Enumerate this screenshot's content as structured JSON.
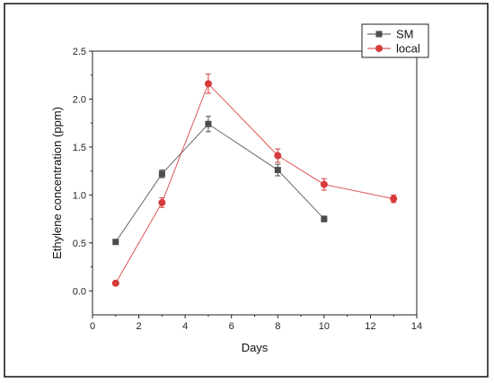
{
  "chart_data": {
    "type": "line",
    "xlabel": "Days",
    "ylabel": "Ethylene concentration (ppm)",
    "xlim": [
      0,
      14
    ],
    "ylim": [
      -0.25,
      2.5
    ],
    "x_ticks": [
      0,
      2,
      4,
      6,
      8,
      10,
      12,
      14
    ],
    "y_ticks": [
      0.0,
      0.5,
      1.0,
      1.5,
      2.0,
      2.5
    ],
    "x_tick_labels": [
      "0",
      "2",
      "4",
      "6",
      "8",
      "10",
      "12",
      "14"
    ],
    "y_tick_labels": [
      "0.0",
      "0.5",
      "1.0",
      "1.5",
      "2.0",
      "2.5"
    ],
    "grid": false,
    "legend_position": "top-right",
    "series": [
      {
        "name": "SM",
        "color": "#4d4d4d",
        "marker": "square",
        "x": [
          1,
          3,
          5,
          8,
          10
        ],
        "values": [
          0.51,
          1.22,
          1.74,
          1.26,
          0.75
        ],
        "errors": [
          0.02,
          0.04,
          0.08,
          0.06,
          0.03
        ]
      },
      {
        "name": "local",
        "color": "#d63a3a",
        "marker": "circle",
        "x": [
          1,
          3,
          5,
          8,
          10,
          13
        ],
        "values": [
          0.08,
          0.92,
          2.16,
          1.41,
          1.11,
          0.96
        ],
        "errors": [
          0.02,
          0.05,
          0.1,
          0.07,
          0.06,
          0.04
        ]
      }
    ]
  }
}
